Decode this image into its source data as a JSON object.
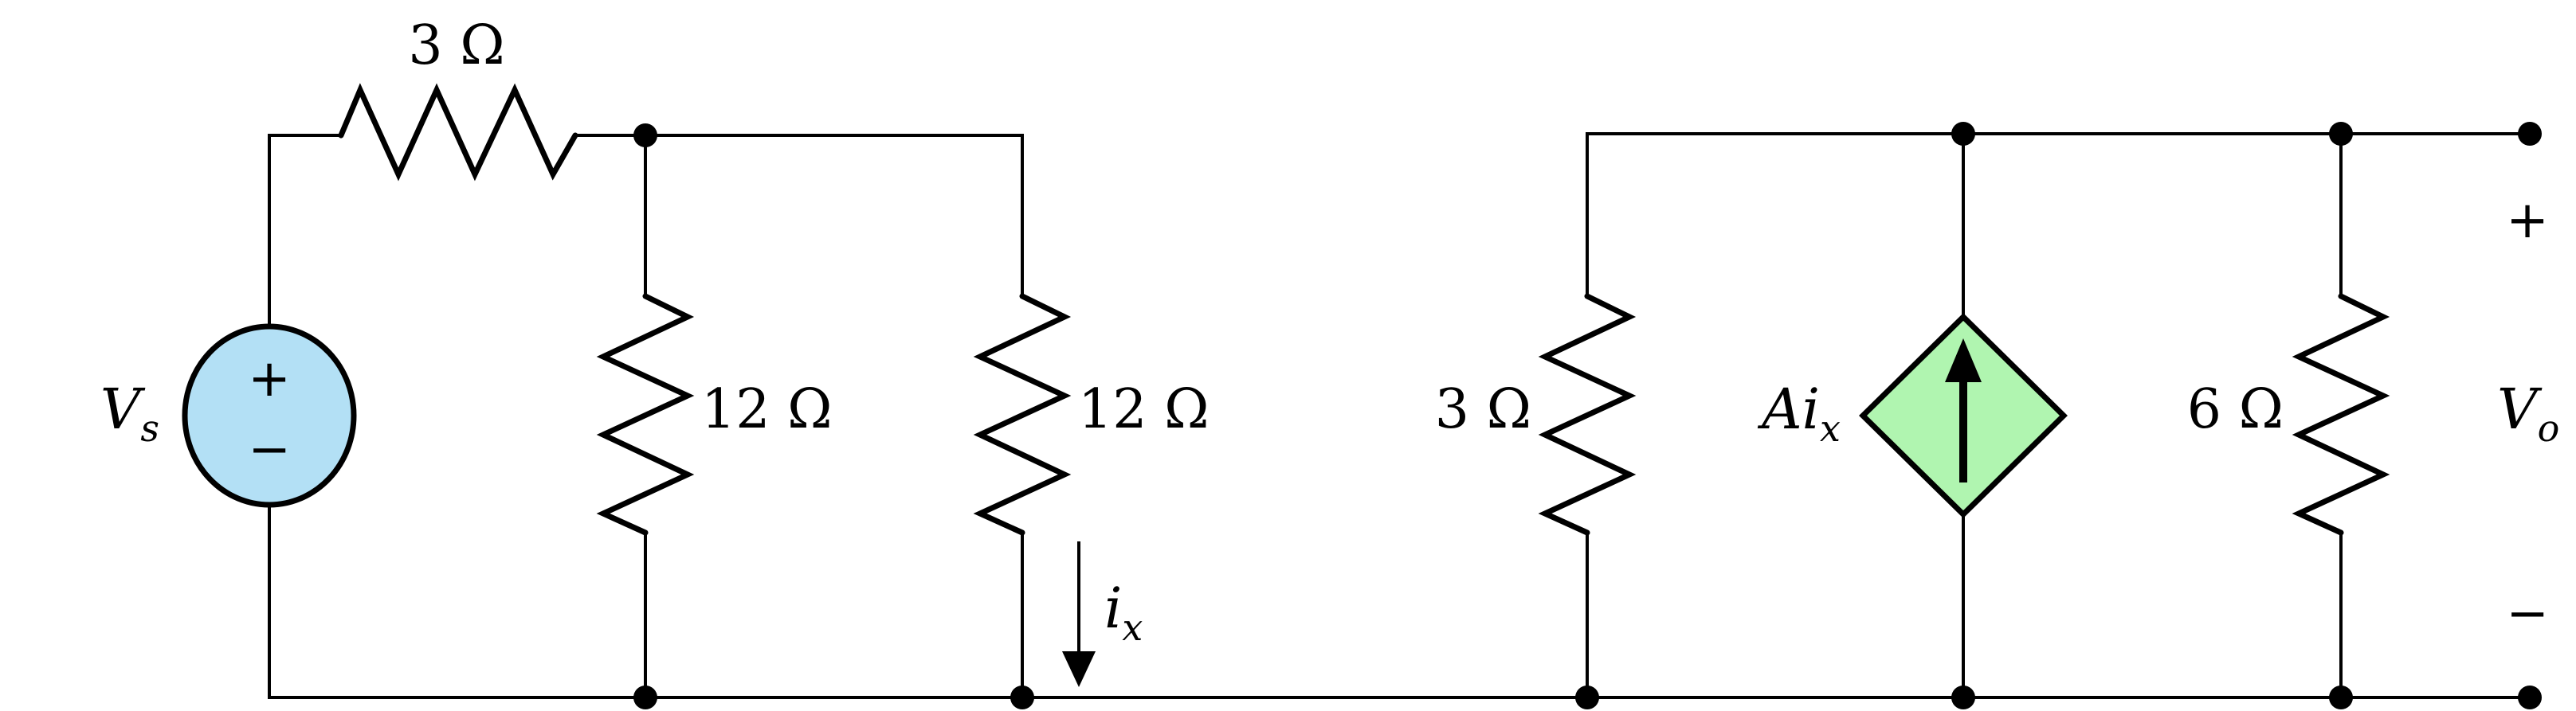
{
  "colors": {
    "voltage_source_fill": "#b3e0f5",
    "dependent_source_fill": "#b0f5b0",
    "wire": "#000000"
  },
  "labels": {
    "r_series": "3 Ω",
    "r12_a": "12 Ω",
    "r12_b": "12 Ω",
    "r3_shunt": "3 Ω",
    "r6": "6 Ω",
    "vs_main": "V",
    "vs_sub": "s",
    "vo_main": "V",
    "vo_sub": "o",
    "ix_main": "i",
    "ix_sub": "x",
    "dep_main": "Ai",
    "dep_sub": "x",
    "src_plus": "+",
    "src_minus": "−",
    "vo_plus": "+",
    "vo_minus": "−"
  },
  "icons": {
    "voltage_source": "independent-voltage-source-icon",
    "dependent_source": "dependent-current-source-icon",
    "current_arrow": "down-arrow-icon"
  }
}
